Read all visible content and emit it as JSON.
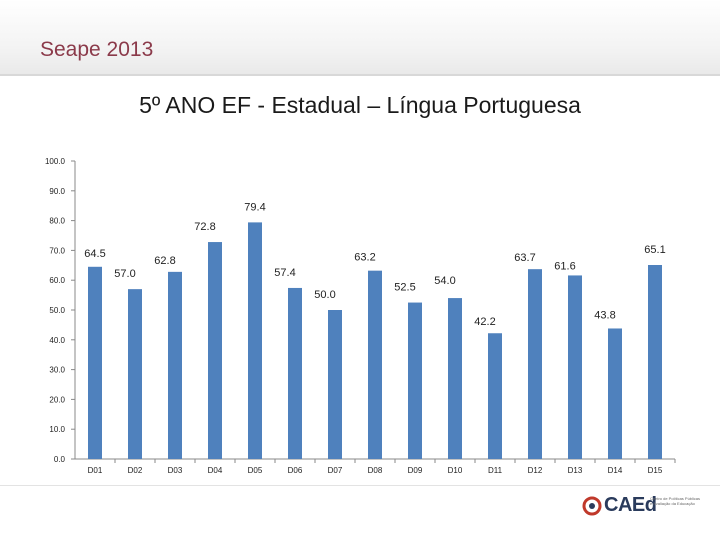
{
  "header": {
    "title": "Seape 2013"
  },
  "chart_data": {
    "type": "bar",
    "title": "5º ANO EF - Estadual – Língua Portuguesa",
    "xlabel": "",
    "ylabel": "",
    "ylim": [
      0,
      100
    ],
    "ytick_labels": [
      "0.0",
      "10.0",
      "20.0",
      "30.0",
      "40.0",
      "50.0",
      "60.0",
      "70.0",
      "80.0",
      "90.0",
      "100.0"
    ],
    "categories": [
      "D01",
      "D02",
      "D03",
      "D04",
      "D05",
      "D06",
      "D07",
      "D08",
      "D09",
      "D10",
      "D11",
      "D12",
      "D13",
      "D14",
      "D15"
    ],
    "values": [
      64.5,
      57.0,
      62.8,
      72.8,
      79.4,
      57.4,
      50.0,
      63.2,
      52.5,
      54.0,
      42.2,
      63.7,
      61.6,
      43.8,
      65.1
    ],
    "data_labels": [
      "64.5",
      "57.0",
      "62.8",
      "72.8",
      "79.4",
      "57.4",
      "50.0",
      "63.2",
      "52.5",
      "54.0",
      "42.2",
      "63.7",
      "61.6",
      "43.8",
      "65.1"
    ],
    "bar_color": "#4f81bd",
    "grid": false
  },
  "footer": {
    "logo_text": "CAEd",
    "logo_subtitle": "Centro de Políticas Públicas e Avaliação da Educação",
    "logo_icon": "caed-logo-icon"
  }
}
